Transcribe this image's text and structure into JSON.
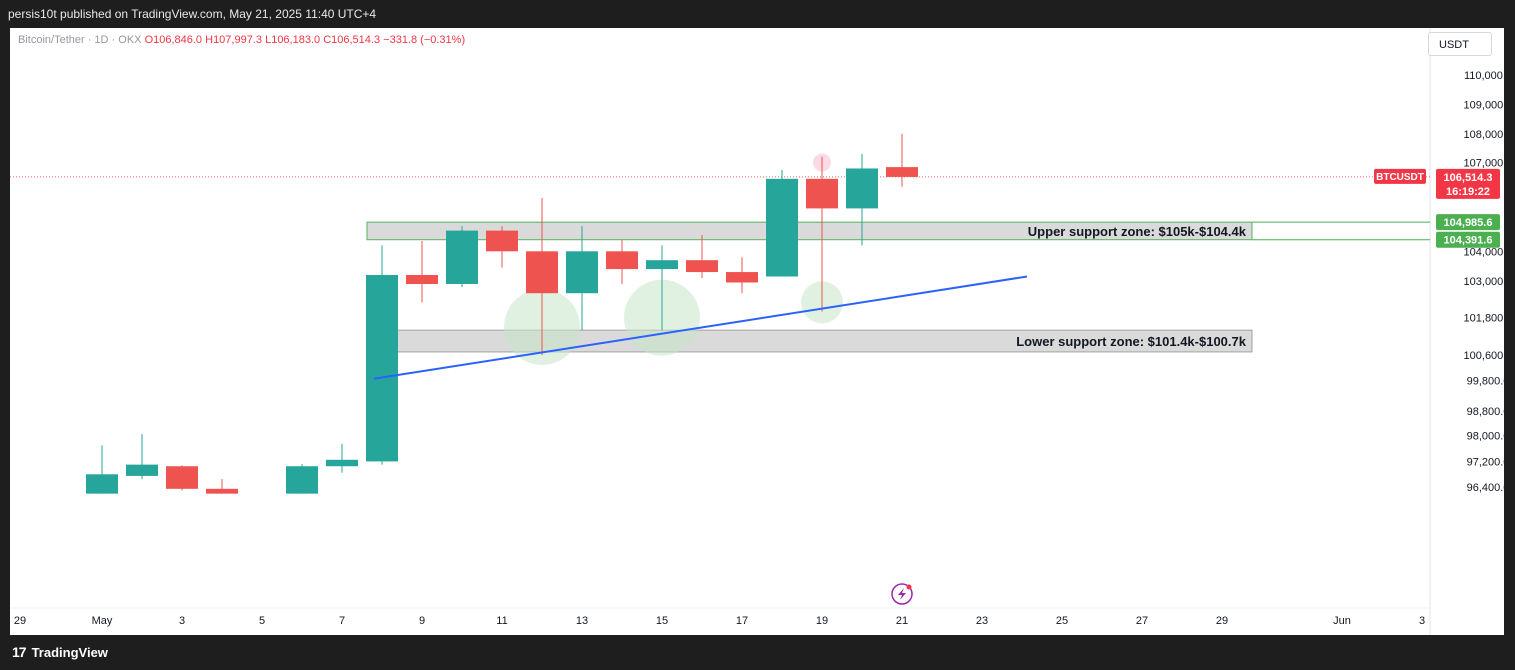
{
  "header": {
    "published_text": "persis10t published on TradingView.com, May 21, 2025 11:40 UTC+4"
  },
  "legend": {
    "symbol": "Bitcoin/Tether · 1D · OKX",
    "open": "O106,846.0",
    "high": "H107,997.3",
    "low": "L106,183.0",
    "close": "C106,514.3",
    "change": "−331.8 (−0.31%)"
  },
  "currency_button": "USDT",
  "footer": {
    "brand": "TradingView",
    "logo": "17"
  },
  "colors": {
    "up": "#26a69a",
    "down": "#ef5350",
    "trendline": "#2962ff",
    "zone_border": "#4caf50",
    "price_tag": "#f23645",
    "highlight": "#c8e6c9",
    "flash_icon": "#9c27b0"
  },
  "icons": {
    "flash": "lightning-icon"
  },
  "chart_data": {
    "type": "candlestick",
    "symbol": "BTCUSDT",
    "x_tick_labels": [
      "29",
      "May",
      "3",
      "5",
      "7",
      "9",
      "11",
      "13",
      "15",
      "17",
      "19",
      "21",
      "23",
      "25",
      "27",
      "29",
      "Jun",
      "3"
    ],
    "y_tick_labels": [
      "110,000.0",
      "109,000.0",
      "108,000.0",
      "107,000.0",
      "104,000.0",
      "103,000.0",
      "101,800.0",
      "100,600.0",
      "99,800.0",
      "98,800.0",
      "98,000.0",
      "97,200.0",
      "96,400.0"
    ],
    "y_ticks": [
      {
        "value": 110000.0,
        "frac": 0.0
      },
      {
        "value": 109000.0,
        "frac": 0.0588
      },
      {
        "value": 108000.0,
        "frac": 0.1176
      },
      {
        "value": 107000.0,
        "frac": 0.1751
      },
      {
        "value": 104000.0,
        "frac": 0.3526
      },
      {
        "value": 103000.0,
        "frac": 0.4119
      },
      {
        "value": 101800.0,
        "frac": 0.4854
      },
      {
        "value": 100600.0,
        "frac": 0.5601
      },
      {
        "value": 99800.0,
        "frac": 0.6107
      },
      {
        "value": 98800.0,
        "frac": 0.6723
      },
      {
        "value": 98000.0,
        "frac": 0.7213
      },
      {
        "value": 97200.0,
        "frac": 0.7728
      },
      {
        "value": 96400.0,
        "frac": 0.8244
      }
    ],
    "candles": [
      {
        "date": "2025-05-01",
        "o": 96200,
        "h": 97700,
        "l": 96200,
        "c": 96800
      },
      {
        "date": "2025-05-02",
        "o": 96750,
        "h": 98050,
        "l": 96650,
        "c": 97100
      },
      {
        "date": "2025-05-03",
        "o": 97050,
        "h": 97080,
        "l": 96300,
        "c": 96350
      },
      {
        "date": "2025-05-04",
        "o": 96350,
        "h": 96650,
        "l": 96200,
        "c": 96200
      },
      {
        "date": "2025-05-06",
        "o": 96200,
        "h": 97120,
        "l": 96200,
        "c": 97050
      },
      {
        "date": "2025-05-07",
        "o": 97050,
        "h": 97750,
        "l": 96850,
        "c": 97250
      },
      {
        "date": "2025-05-08",
        "o": 97200,
        "h": 104200,
        "l": 97100,
        "c": 103200
      },
      {
        "date": "2025-05-09",
        "o": 103200,
        "h": 104350,
        "l": 102300,
        "c": 102900
      },
      {
        "date": "2025-05-10",
        "o": 102900,
        "h": 104850,
        "l": 102800,
        "c": 104700
      },
      {
        "date": "2025-05-11",
        "o": 104700,
        "h": 104850,
        "l": 103450,
        "c": 104000
      },
      {
        "date": "2025-05-12",
        "o": 104000,
        "h": 105800,
        "l": 100600,
        "c": 102600
      },
      {
        "date": "2025-05-13",
        "o": 102600,
        "h": 104850,
        "l": 101400,
        "c": 104000
      },
      {
        "date": "2025-05-14",
        "o": 104000,
        "h": 104400,
        "l": 102900,
        "c": 103400
      },
      {
        "date": "2025-05-15",
        "o": 103400,
        "h": 104200,
        "l": 101400,
        "c": 103700
      },
      {
        "date": "2025-05-16",
        "o": 103700,
        "h": 104550,
        "l": 103100,
        "c": 103300
      },
      {
        "date": "2025-05-17",
        "o": 103300,
        "h": 103800,
        "l": 102600,
        "c": 102950
      },
      {
        "date": "2025-05-18",
        "o": 103150,
        "h": 106750,
        "l": 103150,
        "c": 106450
      },
      {
        "date": "2025-05-19",
        "o": 106450,
        "h": 107200,
        "l": 102000,
        "c": 105450
      },
      {
        "date": "2025-05-20",
        "o": 105450,
        "h": 107300,
        "l": 104200,
        "c": 106800
      },
      {
        "date": "2025-05-21",
        "o": 106846.0,
        "h": 107997.3,
        "l": 106183.0,
        "c": 106514.3
      }
    ],
    "current_price": {
      "label": "BTCUSDT",
      "value": "106,514.3",
      "countdown": "16:19:22"
    },
    "zones": [
      {
        "name": "upper",
        "label": "Upper support zone: $105k-$104.4k",
        "top": 104985.6,
        "bottom": 104391.6,
        "from": "2025-05-08",
        "to": "2025-05-29",
        "top_tag": "104,985.6",
        "bottom_tag": "104,391.6"
      },
      {
        "name": "lower",
        "label": "Lower support zone: $101.4k-$100.7k",
        "top": 101400,
        "bottom": 100700,
        "from": "2025-05-08",
        "to": "2025-05-29"
      }
    ],
    "trendline": {
      "from_date": "2025-05-08",
      "from_price": 99850,
      "to_date": "2025-05-24",
      "to_price": 103150
    },
    "highlights": [
      {
        "date": "2025-05-12",
        "price": 101500,
        "size": "large"
      },
      {
        "date": "2025-05-15",
        "price": 101800,
        "size": "large"
      },
      {
        "date": "2025-05-19",
        "price": 102300,
        "size": "small"
      },
      {
        "date": "2025-05-19",
        "price": 107000,
        "size": "tiny",
        "tint": "red"
      }
    ]
  }
}
